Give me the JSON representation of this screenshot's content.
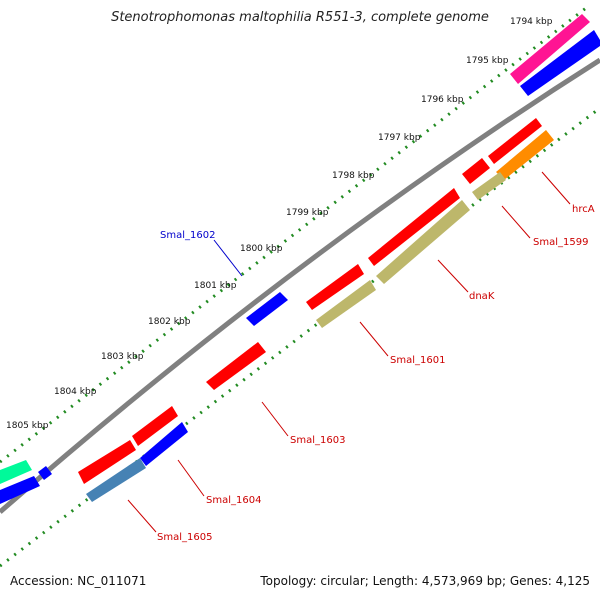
{
  "title": "Stenotrophomonas maltophilia R551-3, complete genome",
  "footer": {
    "accession": "Accession: NC_011071",
    "summary": "Topology: circular; Length: 4,573,969 bp; Genes: 4,125"
  },
  "position_ticks": [
    "1794 kbp",
    "1795 kbp",
    "1796 kbp",
    "1797 kbp",
    "1798 kbp",
    "1799 kbp",
    "1800 kbp",
    "1801 kbp",
    "1802 kbp",
    "1803 kbp",
    "1804 kbp",
    "1805 kbp"
  ],
  "gene_labels": {
    "hrcA": "hrcA",
    "smal_1599": "Smal_1599",
    "dnaK": "dnaK",
    "smal_1601": "Smal_1601",
    "smal_1602": "Smal_1602",
    "smal_1603": "Smal_1603",
    "smal_1604": "Smal_1604",
    "smal_1605": "Smal_1605"
  },
  "colors": {
    "backbone": "#808080",
    "tick_dots": "#228b22",
    "gene_red": "#ff0000",
    "gene_blue": "#0000ff",
    "gene_olive": "#bdb76b",
    "gene_orange": "#ff8c00",
    "gene_magenta": "#ff1493",
    "gene_steelblue": "#4682b4",
    "gene_teal": "#00fa9a",
    "label_red": "#cc0000",
    "label_blue": "#0000cc"
  }
}
